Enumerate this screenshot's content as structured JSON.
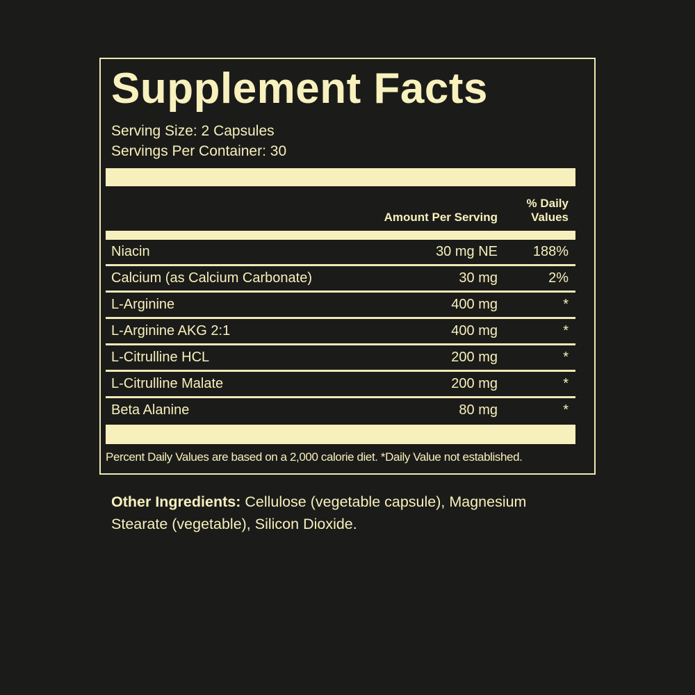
{
  "label": {
    "title": "Supplement Facts",
    "serving_size": "Serving Size: 2 Capsules",
    "servings_per_container": "Servings Per Container: 30",
    "columns": {
      "amount": "Amount Per Serving",
      "daily_line1": "% Daily",
      "daily_line2": "Values"
    },
    "rows": [
      {
        "name": "Niacin",
        "amount": "30 mg NE",
        "dv": "188%"
      },
      {
        "name": "Calcium (as Calcium Carbonate)",
        "amount": "30 mg",
        "dv": "2%"
      },
      {
        "name": "L-Arginine",
        "amount": "400 mg",
        "dv": "*"
      },
      {
        "name": "L-Arginine AKG 2:1",
        "amount": "400 mg",
        "dv": "*"
      },
      {
        "name": "L-Citrulline HCL",
        "amount": "200 mg",
        "dv": "*"
      },
      {
        "name": "L-Citrulline Malate",
        "amount": "200 mg",
        "dv": "*"
      },
      {
        "name": "Beta Alanine",
        "amount": "80 mg",
        "dv": "*"
      }
    ],
    "footnote": "Percent Daily Values are based on a 2,000 calorie diet. *Daily Value not established."
  },
  "other_ingredients": {
    "label": "Other Ingredients:",
    "text": " Cellulose (vegetable capsule), Magnesium Stearate (vegetable), Silicon Dioxide."
  },
  "colors": {
    "cream": "#f7f0bd",
    "background": "#1b1b19"
  }
}
